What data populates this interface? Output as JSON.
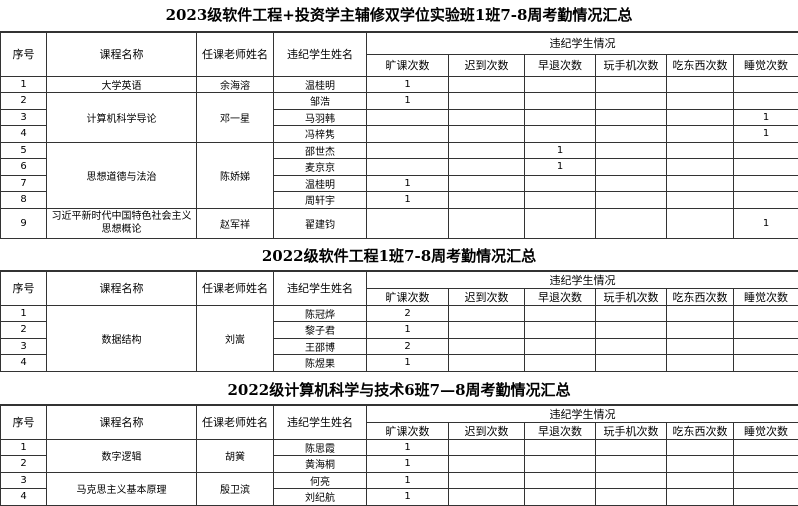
{
  "headers": {
    "seq": "序号",
    "course": "课程名称",
    "teacher": "任课老师姓名",
    "student": "违纪学生姓名",
    "group": "违纪学生情况",
    "counts": [
      "旷课次数",
      "迟到次数",
      "早退次数",
      "玩手机次数",
      "吃东西次数",
      "睡觉次数"
    ]
  },
  "tables": [
    {
      "title": "2023级软件工程+投资学主辅修双学位实验班1班7-8周考勤情况汇总",
      "courses": [
        {
          "course": "大学英语",
          "teacher": "余海溶",
          "students": [
            {
              "seq": "1",
              "name": "温桂明",
              "counts": [
                "1",
                "",
                "",
                "",
                "",
                ""
              ]
            }
          ]
        },
        {
          "course": "计算机科学导论",
          "teacher": "邓一星",
          "students": [
            {
              "seq": "2",
              "name": "邹浩",
              "counts": [
                "1",
                "",
                "",
                "",
                "",
                ""
              ]
            },
            {
              "seq": "3",
              "name": "马羽韩",
              "counts": [
                "",
                "",
                "",
                "",
                "",
                "1"
              ]
            },
            {
              "seq": "4",
              "name": "冯梓隽",
              "counts": [
                "",
                "",
                "",
                "",
                "",
                "1"
              ]
            }
          ]
        },
        {
          "course": "思想道德与法治",
          "teacher": "陈娇娣",
          "students": [
            {
              "seq": "5",
              "name": "邵世杰",
              "counts": [
                "",
                "",
                "1",
                "",
                "",
                ""
              ]
            },
            {
              "seq": "6",
              "name": "麦京京",
              "counts": [
                "",
                "",
                "1",
                "",
                "",
                ""
              ]
            },
            {
              "seq": "7",
              "name": "温桂明",
              "counts": [
                "1",
                "",
                "",
                "",
                "",
                ""
              ]
            },
            {
              "seq": "8",
              "name": "周轩宇",
              "counts": [
                "1",
                "",
                "",
                "",
                "",
                ""
              ]
            }
          ]
        },
        {
          "course": "习近平新时代中国特色社会主义思想概论",
          "teacher": "赵军祥",
          "students": [
            {
              "seq": "9",
              "name": "翟建钧",
              "counts": [
                "",
                "",
                "",
                "",
                "",
                "1"
              ]
            }
          ]
        }
      ]
    },
    {
      "title": "2022级软件工程1班7-8周考勤情况汇总",
      "courses": [
        {
          "course": "数据结构",
          "teacher": "刘嵩",
          "students": [
            {
              "seq": "1",
              "name": "陈冠烨",
              "counts": [
                "2",
                "",
                "",
                "",
                "",
                ""
              ]
            },
            {
              "seq": "2",
              "name": "黎子君",
              "counts": [
                "1",
                "",
                "",
                "",
                "",
                ""
              ]
            },
            {
              "seq": "3",
              "name": "王邵博",
              "counts": [
                "2",
                "",
                "",
                "",
                "",
                ""
              ]
            },
            {
              "seq": "4",
              "name": "陈煜果",
              "counts": [
                "1",
                "",
                "",
                "",
                "",
                ""
              ]
            }
          ]
        }
      ]
    },
    {
      "title": "2022级计算机科学与技术6班7—8周考勤情况汇总",
      "courses": [
        {
          "course": "数字逻辑",
          "teacher": "胡黉",
          "students": [
            {
              "seq": "1",
              "name": "陈思霞",
              "counts": [
                "1",
                "",
                "",
                "",
                "",
                ""
              ]
            },
            {
              "seq": "2",
              "name": "黄海桐",
              "counts": [
                "1",
                "",
                "",
                "",
                "",
                ""
              ]
            }
          ]
        },
        {
          "course": "马克思主义基本原理",
          "teacher": "殷卫滨",
          "students": [
            {
              "seq": "3",
              "name": "何亮",
              "counts": [
                "1",
                "",
                "",
                "",
                "",
                ""
              ]
            },
            {
              "seq": "4",
              "name": "刘纪航",
              "counts": [
                "1",
                "",
                "",
                "",
                "",
                ""
              ]
            }
          ]
        }
      ]
    }
  ]
}
